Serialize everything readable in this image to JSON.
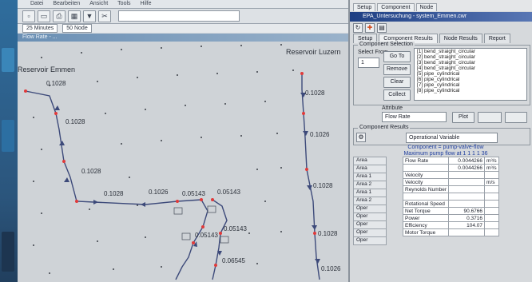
{
  "menu": {
    "items": [
      "Datei",
      "Bearbeiten",
      "Ansicht",
      "Tools",
      "Hilfe"
    ]
  },
  "status": {
    "field1": "25 Minutes",
    "field2": "50  Node"
  },
  "window2_title": "Flow Rate - ...",
  "map": {
    "reservoir_left": "Reservoir Emmen",
    "reservoir_right": "Reservoir Luzern",
    "pipe_labels": [
      "0.1028",
      "0.1028",
      "0.1028",
      "0.1028",
      "0.1028",
      "0.1026",
      "0.05143",
      "0.05143",
      "0.05143",
      "0.05143",
      "0.06545",
      "0.1026",
      "0.1028",
      "0.1028",
      "0.1026"
    ]
  },
  "panel": {
    "top_tabs": [
      "Setup",
      "Component",
      "Node"
    ],
    "title": "EPA_Untersuchung - system_Emmen.cwr",
    "subtabs": [
      "Setup",
      "Component Results",
      "Node Results",
      "Report"
    ],
    "selection_group": "Component Selection",
    "select_label": "Select From",
    "select_value": "1",
    "buttons": [
      "Go To",
      "Remove",
      "Clear",
      "Collect"
    ],
    "list_items": [
      "[1] bend_straight_circular",
      "[2] bend_straight_circular",
      "[3] bend_straight_circular",
      "[4] bend_straight_circular",
      "[5] pipe_cylindrical",
      "[6] pipe_cylindrical",
      "[7] pipe_cylindrical",
      "[8] pipe_cylindrical"
    ],
    "attribute_label": "Attribute",
    "attribute_value": "Flow Rate",
    "plot_button": "Plot",
    "results_group": "Component Results",
    "operational_variable": "Operational Variable",
    "results_title_1": "Component = pump-valve-flow",
    "results_title_2": "Maximum pump flow at 1 1 1 1 36",
    "rows": [
      {
        "h": "Area",
        "n": "Flow Rate",
        "v1": "0.0044266",
        "v2": "m³/s"
      },
      {
        "h": "Area",
        "n": "",
        "v1": "0.0044266",
        "v2": "m³/s"
      },
      {
        "h": "Area 1",
        "n": "Velocity",
        "v1": "",
        "v2": ""
      },
      {
        "h": "Area 2",
        "n": "Velocity",
        "v1": "",
        "v2": "m/s"
      },
      {
        "h": "Area 1",
        "n": "Reynolds Number",
        "v1": "",
        "v2": ""
      },
      {
        "h": "Area 2",
        "n": "",
        "v1": "",
        "v2": ""
      },
      {
        "h": "Oper",
        "n": "Rotational Speed",
        "v1": "",
        "v2": ""
      },
      {
        "h": "Oper",
        "n": "Net Torque",
        "v1": "90.6766",
        "v2": ""
      },
      {
        "h": "Oper",
        "n": "Power",
        "v1": "0.3716",
        "v2": ""
      },
      {
        "h": "Oper",
        "n": "Efficiency",
        "v1": "104.07",
        "v2": ""
      },
      {
        "h": "Oper",
        "n": "Motor Torque",
        "v1": "",
        "v2": ""
      }
    ]
  },
  "colors": {
    "pipe": "#3d4a7a",
    "node": "#e03a3a",
    "title_bar": "#1e3f83"
  }
}
